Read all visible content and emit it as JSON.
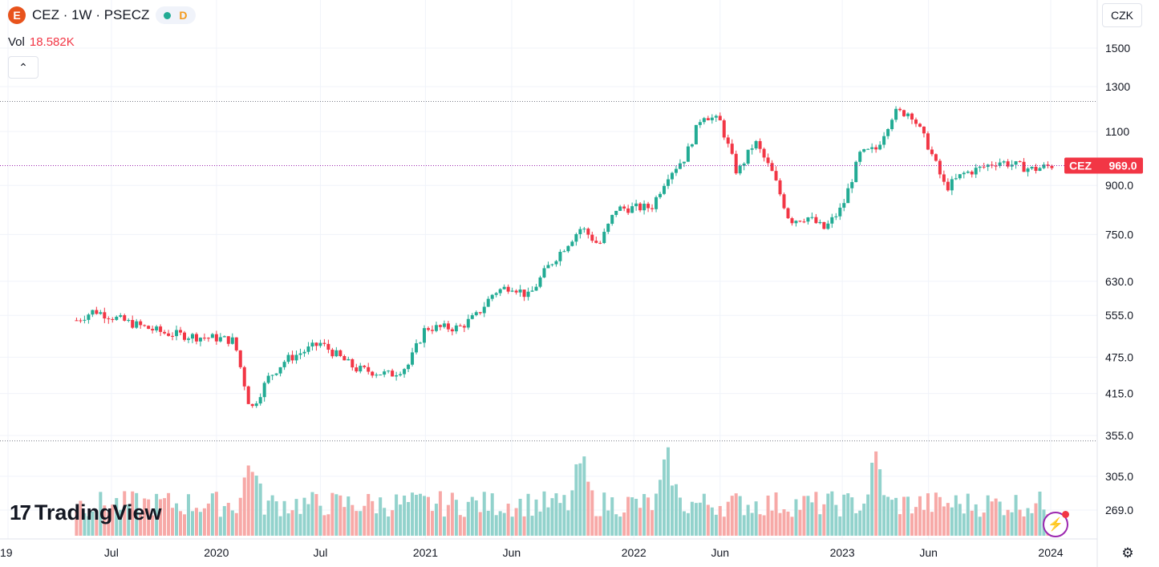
{
  "header": {
    "logo_letter": "E",
    "title": "CEZ · 1W · PSECZ",
    "status_label": "D",
    "vol_label": "Vol",
    "vol_value": "18.582K",
    "currency": "CZK",
    "brand_mark": "17",
    "brand_name": "TradingView"
  },
  "colors": {
    "up": "#22ab94",
    "down": "#f23645",
    "up_vol": "#92d2cc",
    "down_vol": "#f7a9a7",
    "grid": "#f0f3fa",
    "last_price": "#9c27b0",
    "price_tag": "#f23645"
  },
  "icons": {
    "collapse": "chevron-up-icon",
    "settings": "gear-icon",
    "bolt": "lightning-icon"
  },
  "chart_data": {
    "type": "candlestick",
    "symbol": "CEZ",
    "interval": "1W",
    "exchange": "PSECZ",
    "y_scale": "log",
    "ylim": [
      230,
      1560
    ],
    "y_ticks": [
      1500,
      1300,
      1100,
      "900.0",
      "750.0",
      "630.0",
      "555.0",
      "475.0",
      "415.0",
      "355.0",
      "305.0",
      "269.0"
    ],
    "x_labels": [
      "19",
      "Jul",
      "2020",
      "Jul",
      "2021",
      "Jun",
      "2022",
      "Jun",
      "2023",
      "Jun",
      "2024"
    ],
    "last_price": {
      "label": "CEZ",
      "value": "969.0"
    },
    "reference_lines": [
      1230,
      348
    ],
    "grid": true,
    "trend_points": [
      [
        "2019-05",
        545
      ],
      [
        "2019-06",
        565
      ],
      [
        "2019-08",
        540
      ],
      [
        "2019-10",
        520
      ],
      [
        "2019-12",
        512
      ],
      [
        "2020-01",
        510
      ],
      [
        "2020-02",
        505
      ],
      [
        "2020-03",
        390
      ],
      [
        "2020-04",
        440
      ],
      [
        "2020-05",
        470
      ],
      [
        "2020-07",
        500
      ],
      [
        "2020-09",
        455
      ],
      [
        "2020-11",
        445
      ],
      [
        "2020-12",
        460
      ],
      [
        "2021-01",
        530
      ],
      [
        "2021-03",
        530
      ],
      [
        "2021-04",
        555
      ],
      [
        "2021-05",
        605
      ],
      [
        "2021-06",
        620
      ],
      [
        "2021-07",
        595
      ],
      [
        "2021-08",
        660
      ],
      [
        "2021-09",
        715
      ],
      [
        "2021-10",
        770
      ],
      [
        "2021-11",
        720
      ],
      [
        "2021-12",
        825
      ],
      [
        "2022-02",
        830
      ],
      [
        "2022-03",
        935
      ],
      [
        "2022-04",
        1000
      ],
      [
        "2022-05",
        1175
      ],
      [
        "2022-06",
        1140
      ],
      [
        "2022-07",
        940
      ],
      [
        "2022-08",
        1060
      ],
      [
        "2022-09",
        940
      ],
      [
        "2022-10",
        790
      ],
      [
        "2022-11",
        800
      ],
      [
        "2022-12",
        765
      ],
      [
        "2023-01",
        830
      ],
      [
        "2023-02",
        1010
      ],
      [
        "2023-03",
        1030
      ],
      [
        "2023-04",
        1180
      ],
      [
        "2023-05",
        1180
      ],
      [
        "2023-06",
        1040
      ],
      [
        "2023-07",
        890
      ],
      [
        "2023-08",
        940
      ],
      [
        "2023-09",
        960
      ],
      [
        "2023-10",
        985
      ],
      [
        "2023-11",
        970
      ],
      [
        "2023-12",
        955
      ],
      [
        "2024-01",
        969
      ]
    ],
    "volume": {
      "last": "18.582K",
      "spike_weeks": [
        "2020-03",
        "2021-10",
        "2022-03",
        "2023-03"
      ]
    }
  }
}
